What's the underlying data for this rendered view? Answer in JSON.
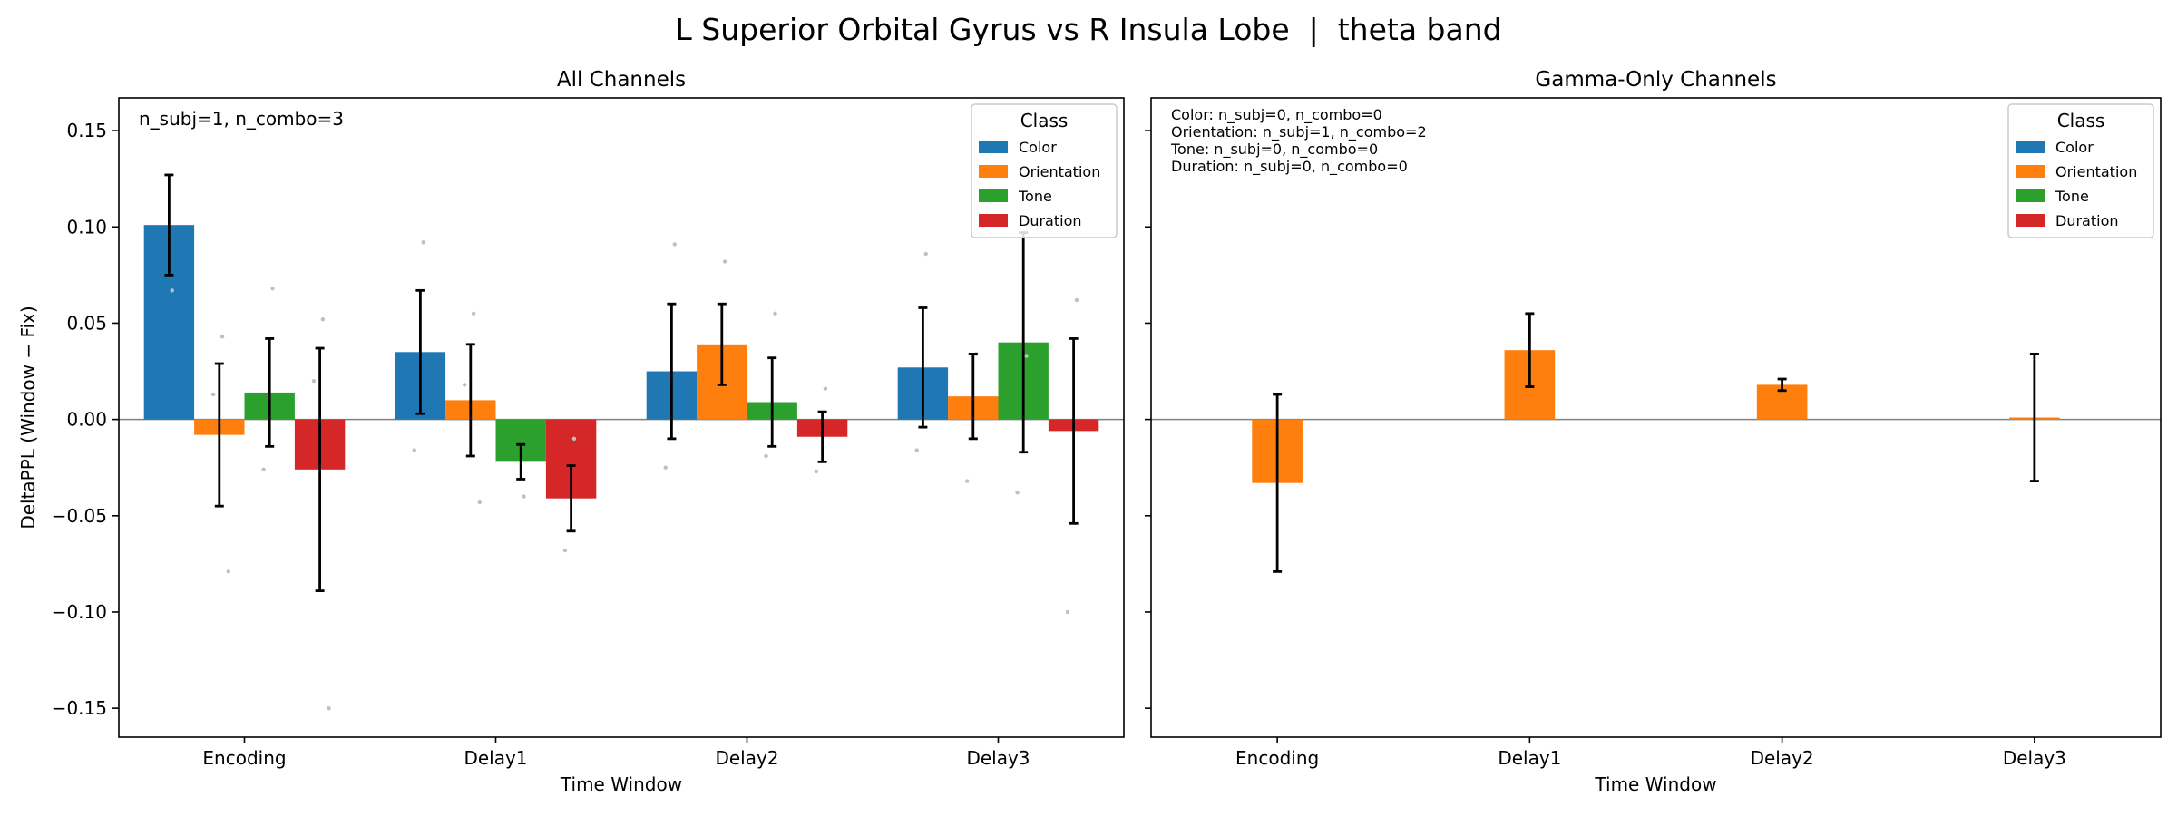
{
  "figure": {
    "suptitle": "L Superior Orbital Gyrus vs R Insula Lobe  |  theta band"
  },
  "colors": {
    "Color": "#1f77b4",
    "Orientation": "#ff7f0e",
    "Tone": "#2ca02c",
    "Duration": "#d62728",
    "zero_line": "#808080",
    "scatter": "#c0c0c0"
  },
  "chart_data": [
    {
      "type": "bar",
      "title": "All Channels",
      "xlabel": "Time Window",
      "ylabel": "DeltaPPL (Window − Fix)",
      "categories": [
        "Encoding",
        "Delay1",
        "Delay2",
        "Delay3"
      ],
      "ylim": [
        -0.165,
        0.167
      ],
      "yticks": [
        -0.15,
        -0.1,
        -0.05,
        0.0,
        0.05,
        0.1,
        0.15
      ],
      "ytick_labels": [
        "−0.15",
        "−0.10",
        "−0.05",
        "0.00",
        "0.05",
        "0.10",
        "0.15"
      ],
      "annotation": [
        "n_subj=1, n_combo=3"
      ],
      "legend": {
        "title": "Class",
        "position": "top-right",
        "entries": [
          "Color",
          "Orientation",
          "Tone",
          "Duration"
        ]
      },
      "series": [
        {
          "name": "Color",
          "values": [
            0.101,
            0.035,
            0.025,
            0.027
          ],
          "err": [
            0.026,
            0.032,
            0.035,
            0.031
          ]
        },
        {
          "name": "Orientation",
          "values": [
            -0.008,
            0.01,
            0.039,
            0.012
          ],
          "err": [
            0.037,
            0.029,
            0.021,
            0.022
          ]
        },
        {
          "name": "Tone",
          "values": [
            0.014,
            -0.022,
            0.009,
            0.04
          ],
          "err": [
            0.028,
            0.009,
            0.023,
            0.057
          ]
        },
        {
          "name": "Duration",
          "values": [
            -0.026,
            -0.041,
            -0.009,
            -0.006
          ],
          "err": [
            0.063,
            0.017,
            0.013,
            0.048
          ]
        }
      ],
      "points": [
        {
          "series": "Color",
          "category": "Encoding",
          "y": [
            0.067
          ]
        },
        {
          "series": "Orientation",
          "category": "Encoding",
          "y": [
            0.043,
            0.013,
            -0.079
          ]
        },
        {
          "series": "Tone",
          "category": "Encoding",
          "y": [
            0.068,
            -0.026
          ]
        },
        {
          "series": "Duration",
          "category": "Encoding",
          "y": [
            0.052,
            0.02,
            -0.15
          ]
        },
        {
          "series": "Color",
          "category": "Delay1",
          "y": [
            0.092,
            -0.016
          ]
        },
        {
          "series": "Orientation",
          "category": "Delay1",
          "y": [
            0.055,
            0.018,
            -0.043
          ]
        },
        {
          "series": "Tone",
          "category": "Delay1",
          "y": [
            -0.04
          ]
        },
        {
          "series": "Duration",
          "category": "Delay1",
          "y": [
            -0.01,
            -0.068
          ]
        },
        {
          "series": "Color",
          "category": "Delay2",
          "y": [
            0.091,
            -0.025
          ]
        },
        {
          "series": "Orientation",
          "category": "Delay2",
          "y": [
            0.082
          ]
        },
        {
          "series": "Tone",
          "category": "Delay2",
          "y": [
            0.055,
            -0.019
          ]
        },
        {
          "series": "Duration",
          "category": "Delay2",
          "y": [
            0.016,
            -0.027
          ]
        },
        {
          "series": "Color",
          "category": "Delay3",
          "y": [
            0.086,
            -0.016
          ]
        },
        {
          "series": "Orientation",
          "category": "Delay3",
          "y": [
            0.034,
            -0.032
          ]
        },
        {
          "series": "Tone",
          "category": "Delay3",
          "y": [
            0.033,
            -0.038
          ]
        },
        {
          "series": "Duration",
          "category": "Delay3",
          "y": [
            0.062,
            -0.1
          ]
        }
      ]
    },
    {
      "type": "bar",
      "title": "Gamma-Only Channels",
      "xlabel": "Time Window",
      "ylabel": "",
      "categories": [
        "Encoding",
        "Delay1",
        "Delay2",
        "Delay3"
      ],
      "ylim": [
        -0.165,
        0.167
      ],
      "yticks": [
        -0.15,
        -0.1,
        -0.05,
        0.0,
        0.05,
        0.1,
        0.15
      ],
      "annotation": [
        "Color: n_subj=0, n_combo=0",
        "Orientation: n_subj=1, n_combo=2",
        "Tone: n_subj=0, n_combo=0",
        "Duration: n_subj=0, n_combo=0"
      ],
      "legend": {
        "title": "Class",
        "position": "top-right",
        "entries": [
          "Color",
          "Orientation",
          "Tone",
          "Duration"
        ]
      },
      "series": [
        {
          "name": "Orientation",
          "values": [
            -0.033,
            0.036,
            0.018,
            0.001
          ],
          "err": [
            0.046,
            0.019,
            0.003,
            0.033
          ]
        }
      ],
      "points": []
    }
  ]
}
